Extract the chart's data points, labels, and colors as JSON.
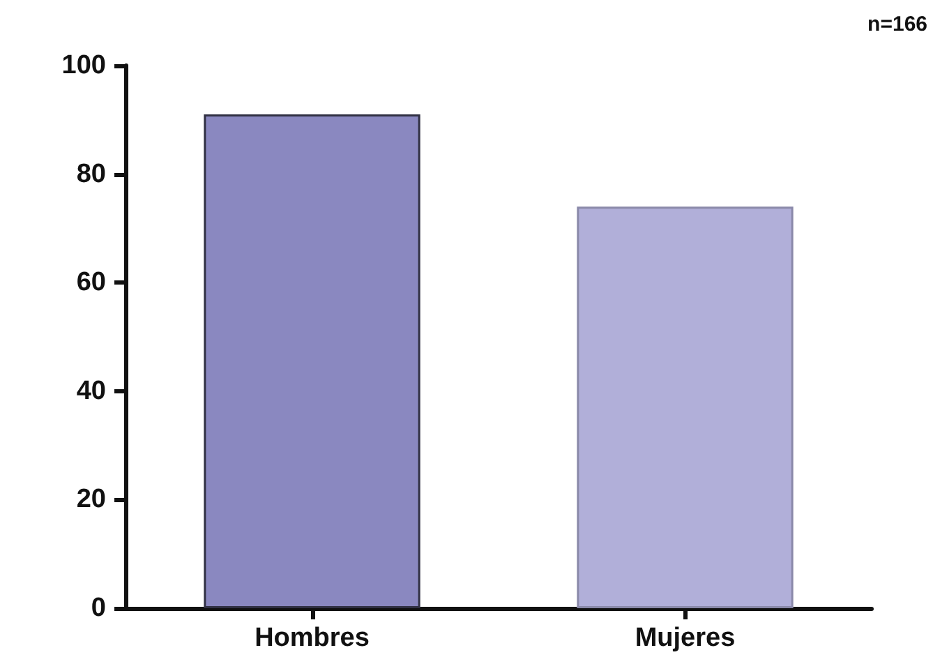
{
  "chart_data": {
    "type": "bar",
    "categories": [
      "Hombres",
      "Mujeres"
    ],
    "values": [
      91,
      74
    ],
    "colors": [
      "#8a88c0",
      "#b1afd9"
    ],
    "ylim": [
      0,
      100
    ],
    "yticks": [
      0,
      20,
      40,
      60,
      80,
      100
    ],
    "grid": false,
    "annotations": [
      "n=166"
    ]
  }
}
